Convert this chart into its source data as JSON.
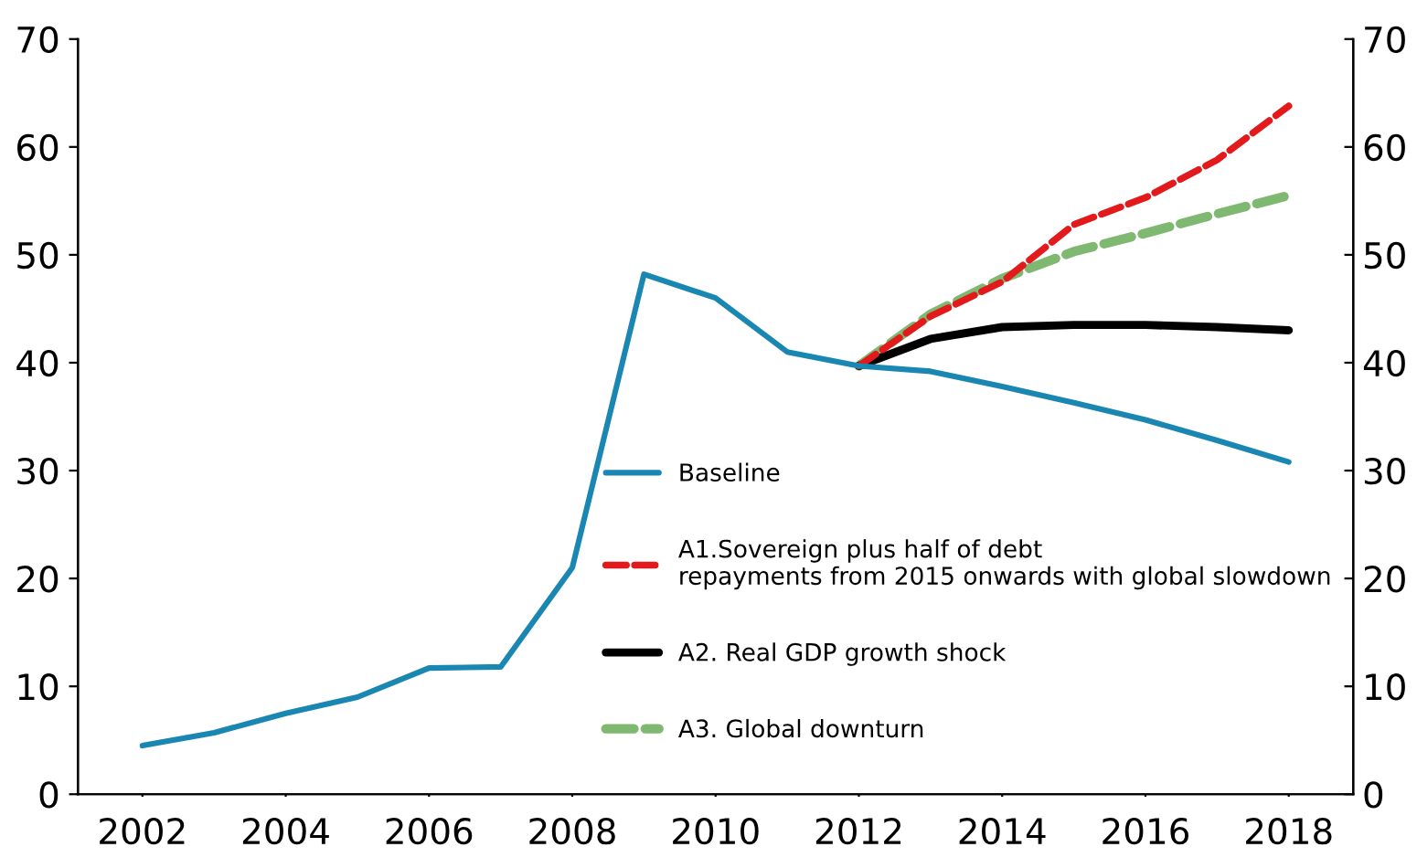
{
  "chart_data": {
    "type": "line",
    "x": [
      2002,
      2003,
      2004,
      2005,
      2006,
      2007,
      2008,
      2009,
      2010,
      2011,
      2012,
      2013,
      2014,
      2015,
      2016,
      2017,
      2018
    ],
    "series": [
      {
        "name": "Baseline",
        "color": "#1a87b3",
        "line_style": "solid",
        "values": [
          4.5,
          5.7,
          7.5,
          9.0,
          11.7,
          11.8,
          21.0,
          48.2,
          46.0,
          41.0,
          39.7,
          39.2,
          37.8,
          36.3,
          34.7,
          32.8,
          30.8
        ]
      },
      {
        "name": "A1.Sovereign plus half of debt\nrepayments from 2015 onwards with global slowdown",
        "color": "#e31a1c",
        "line_style": "dashed",
        "values": [
          null,
          null,
          null,
          null,
          null,
          null,
          null,
          null,
          null,
          null,
          39.7,
          44.3,
          47.5,
          52.8,
          55.3,
          58.8,
          63.8
        ]
      },
      {
        "name": "A2. Real GDP growth shock",
        "color": "#000000",
        "line_style": "solid",
        "values": [
          null,
          null,
          null,
          null,
          null,
          null,
          null,
          null,
          null,
          null,
          39.7,
          42.2,
          43.3,
          43.5,
          43.5,
          43.3,
          43.0
        ]
      },
      {
        "name": "A3. Global downturn",
        "color": "#7fb870",
        "line_style": "dashed",
        "values": [
          null,
          null,
          null,
          null,
          null,
          null,
          null,
          null,
          null,
          null,
          39.7,
          44.5,
          47.8,
          50.3,
          52.0,
          53.8,
          55.5
        ]
      }
    ],
    "xlim": [
      2001.1,
      2018.9
    ],
    "xticks": [
      2002,
      2004,
      2006,
      2008,
      2010,
      2012,
      2014,
      2016,
      2018
    ],
    "ylim": [
      0,
      70
    ],
    "yticks": [
      0,
      10,
      20,
      30,
      40,
      50,
      60,
      70
    ],
    "y2lim": [
      0,
      70
    ],
    "y2ticks": [
      0,
      10,
      20,
      30,
      40,
      50,
      60,
      70
    ],
    "grid": false,
    "legend": "bottom right",
    "marker": "none"
  }
}
